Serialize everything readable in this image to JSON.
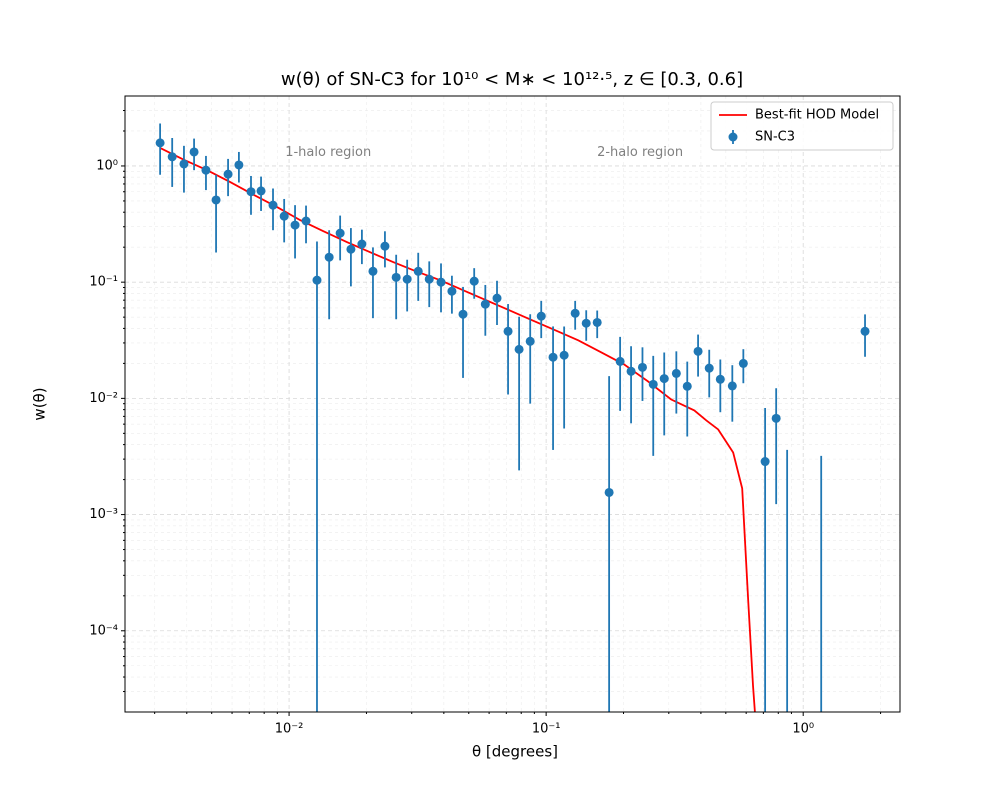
{
  "chart_data": {
    "type": "errorbar",
    "title": "w(θ) of SN-C3 for 10¹⁰ < M∗ < 10¹²·⁵, z ∈ [0.3, 0.6]",
    "x_label": "θ [degrees]",
    "y_label": "w(θ)",
    "xscale": "log",
    "yscale": "log",
    "xlim": [
      0.0023,
      2.38
    ],
    "ylim": [
      2e-05,
      4.0
    ],
    "xticks": [
      {
        "value": 0.01,
        "label": "10⁻²"
      },
      {
        "value": 0.1,
        "label": "10⁻¹"
      },
      {
        "value": 1,
        "label": "10⁰"
      }
    ],
    "yticks": [
      {
        "value": 0.0001,
        "label": "10⁻⁴"
      },
      {
        "value": 0.001,
        "label": "10⁻³"
      },
      {
        "value": 0.01,
        "label": "10⁻²"
      },
      {
        "value": 0.1,
        "label": "10⁻¹"
      },
      {
        "value": 1,
        "label": "10⁰"
      }
    ],
    "grid": true,
    "minor_grid": true,
    "legend_loc": "upper right",
    "annotations": [
      {
        "text": "1-halo region",
        "x": 0.0142,
        "y": 1.3
      },
      {
        "text": "2-halo region",
        "x": 0.232,
        "y": 1.3
      }
    ],
    "series": [
      {
        "name": "Best-fit HOD Model",
        "type": "line",
        "color": "#ff0000",
        "x": [
          0.00315,
          0.0039,
          0.0048,
          0.00589,
          0.00731,
          0.00898,
          0.01104,
          0.01356,
          0.01682,
          0.02066,
          0.0254,
          0.0312,
          0.0387,
          0.0475,
          0.0584,
          0.0718,
          0.0883,
          0.1084,
          0.1333,
          0.1637,
          0.201,
          0.249,
          0.306,
          0.377,
          0.42,
          0.467,
          0.534,
          0.579,
          0.611,
          0.638,
          0.655
        ],
        "values": [
          1.43,
          1.13,
          0.92,
          0.728,
          0.562,
          0.443,
          0.342,
          0.275,
          0.221,
          0.181,
          0.149,
          0.124,
          0.104,
          0.0853,
          0.07,
          0.0574,
          0.047,
          0.0386,
          0.0316,
          0.0249,
          0.0196,
          0.014,
          0.0098,
          0.00788,
          0.00646,
          0.0054,
          0.00342,
          0.00168,
          0.000182,
          3.36e-05,
          1.5e-05
        ]
      },
      {
        "name": "SN-C3",
        "type": "errorbar",
        "color": "#1f77b4",
        "x": [
          0.00315,
          0.00351,
          0.0039,
          0.00427,
          0.00475,
          0.0052,
          0.00579,
          0.00638,
          0.00711,
          0.00778,
          0.00866,
          0.00957,
          0.01055,
          0.01164,
          0.01284,
          0.01432,
          0.0158,
          0.0174,
          0.0192,
          0.0212,
          0.0236,
          0.0261,
          0.0288,
          0.0318,
          0.0351,
          0.039,
          0.043,
          0.0475,
          0.0525,
          0.058,
          0.0644,
          0.0711,
          0.0785,
          0.0867,
          0.0957,
          0.1064,
          0.1175,
          0.1297,
          0.1432,
          0.158,
          0.1758,
          0.194,
          0.214,
          0.237,
          0.261,
          0.288,
          0.321,
          0.354,
          0.39,
          0.431,
          0.476,
          0.53,
          0.585,
          0.711,
          0.785,
          0.866,
          1.175,
          1.74
        ],
        "values": [
          1.58,
          1.2,
          1.04,
          1.32,
          0.92,
          0.51,
          0.85,
          1.02,
          0.6,
          0.61,
          0.46,
          0.37,
          0.31,
          0.336,
          0.104,
          0.164,
          0.264,
          0.192,
          0.213,
          0.124,
          0.204,
          0.11,
          0.106,
          0.124,
          0.106,
          0.1,
          0.0836,
          0.053,
          0.102,
          0.0646,
          0.0728,
          0.0378,
          0.0264,
          0.031,
          0.051,
          0.0226,
          0.0235,
          0.054,
          0.0443,
          0.045,
          0.00155,
          0.0208,
          0.0171,
          0.0185,
          0.0132,
          0.0148,
          0.0164,
          0.0127,
          0.0254,
          0.0182,
          0.0146,
          0.0128,
          0.02,
          0.00286,
          0.00673,
          -0.001,
          -0.001,
          0.0378
        ],
        "errors": [
          0.74,
          0.54,
          0.45,
          0.4,
          0.3,
          0.33,
          0.3,
          0.3,
          0.22,
          0.2,
          0.18,
          0.15,
          0.15,
          0.12,
          0.12,
          0.116,
          0.11,
          0.1,
          0.07,
          0.075,
          0.07,
          0.062,
          0.05,
          0.055,
          0.045,
          0.045,
          0.03,
          0.038,
          0.03,
          0.03,
          0.03,
          0.027,
          0.024,
          0.022,
          0.018,
          0.019,
          0.018,
          0.015,
          0.013,
          0.012,
          0.014,
          0.013,
          0.011,
          0.009,
          0.01,
          0.01,
          0.009,
          0.008,
          0.01,
          0.008,
          0.007,
          0.0065,
          0.0065,
          0.0054,
          0.0055,
          0.0046,
          0.0042,
          0.015
        ]
      }
    ]
  }
}
